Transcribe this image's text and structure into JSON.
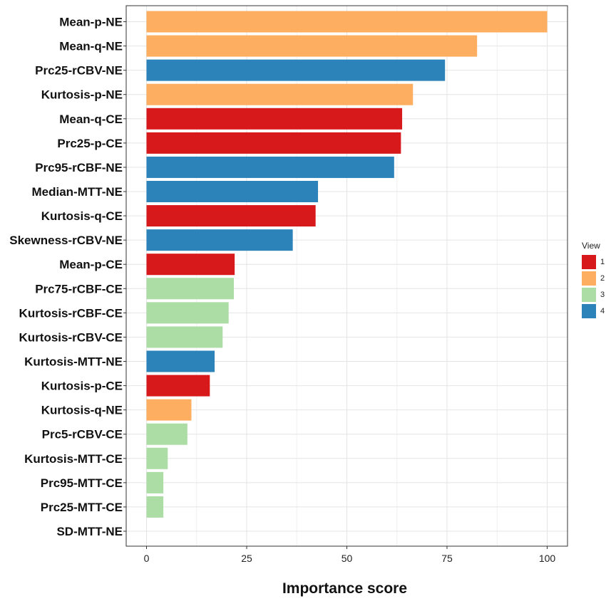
{
  "chart_data": {
    "type": "bar",
    "orientation": "horizontal",
    "xlabel": "Importance score",
    "ylabel": "",
    "xlim": [
      0,
      105
    ],
    "xticks": [
      0,
      25,
      50,
      75,
      100
    ],
    "grid": true,
    "legend_title": "View",
    "legend_position": "right",
    "legend": [
      {
        "label": "1",
        "color": "#d7191c"
      },
      {
        "label": "2",
        "color": "#fdae61"
      },
      {
        "label": "3",
        "color": "#abdda4"
      },
      {
        "label": "4",
        "color": "#2b83ba"
      }
    ],
    "categories": [
      "Mean-p-NE",
      "Mean-q-NE",
      "Prc25-rCBV-NE",
      "Kurtosis-p-NE",
      "Mean-q-CE",
      "Prc25-p-CE",
      "Prc95-rCBF-NE",
      "Median-MTT-NE",
      "Kurtosis-q-CE",
      "Skewness-rCBV-NE",
      "Mean-p-CE",
      "Prc75-rCBF-CE",
      "Kurtosis-rCBF-CE",
      "Kurtosis-rCBV-CE",
      "Kurtosis-MTT-NE",
      "Kurtosis-p-CE",
      "Kurtosis-q-NE",
      "Prc5-rCBV-CE",
      "Kurtosis-MTT-CE",
      "Prc95-MTT-CE",
      "Prc25-MTT-CE",
      "SD-MTT-NE"
    ],
    "values": [
      100,
      82.5,
      74.5,
      66.5,
      63.8,
      63.5,
      61.8,
      42.8,
      42.2,
      36.5,
      22,
      21.8,
      20.5,
      19,
      17,
      15.8,
      11.2,
      10.2,
      5.3,
      4.2,
      4.2,
      0
    ],
    "views": [
      "2",
      "2",
      "4",
      "2",
      "1",
      "1",
      "4",
      "4",
      "1",
      "4",
      "1",
      "3",
      "3",
      "3",
      "4",
      "1",
      "2",
      "3",
      "3",
      "3",
      "3",
      "3"
    ]
  }
}
